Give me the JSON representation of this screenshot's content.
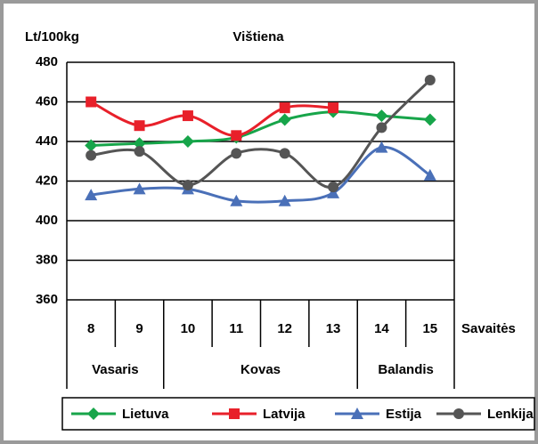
{
  "chart_data": {
    "type": "line",
    "title": "Vištiena",
    "y_label": "Lt/100kg",
    "x_label": "Savaitės",
    "categories": [
      "8",
      "9",
      "10",
      "11",
      "12",
      "13",
      "14",
      "15"
    ],
    "months": [
      "Vasaris",
      "Kovas",
      "Balandis"
    ],
    "series": [
      {
        "name": "Lietuva",
        "color": "#17a54a",
        "marker": "diamond",
        "values": [
          438,
          439,
          440,
          442,
          451,
          455,
          453,
          451
        ]
      },
      {
        "name": "Latvija",
        "color": "#e8202a",
        "marker": "square",
        "values": [
          460,
          448,
          453,
          443,
          457,
          457,
          null,
          null
        ]
      },
      {
        "name": "Estija",
        "color": "#4a70b8",
        "marker": "triangle",
        "values": [
          413,
          416,
          416,
          410,
          410,
          414,
          437,
          423
        ]
      },
      {
        "name": "Lenkija",
        "color": "#555555",
        "marker": "circle",
        "values": [
          433,
          435,
          418,
          434,
          434,
          417,
          447,
          471
        ]
      }
    ],
    "ylim": [
      360,
      480
    ],
    "yticks": [
      360,
      380,
      400,
      420,
      440,
      460,
      480
    ],
    "grid": true,
    "legend": "bottom"
  }
}
